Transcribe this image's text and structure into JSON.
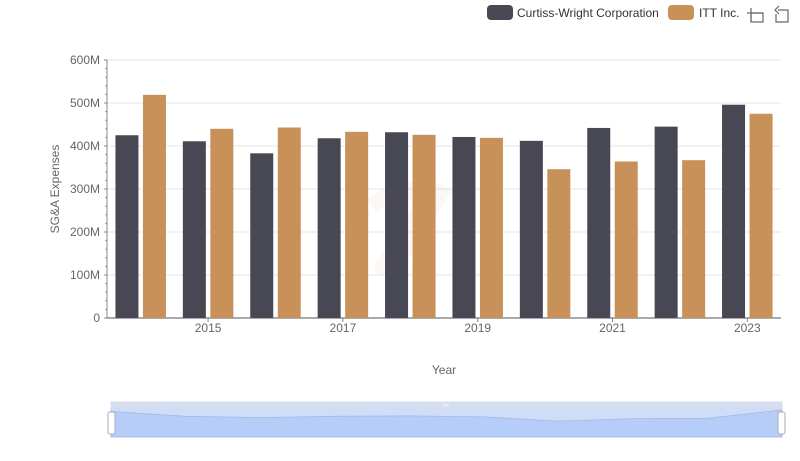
{
  "legend": {
    "items": [
      {
        "label": "Curtiss-Wright Corporation",
        "color": "#474853"
      },
      {
        "label": "ITT Inc.",
        "color": "#c8915a"
      }
    ]
  },
  "toolbox": {
    "zoom_icon": "zoom-select-icon",
    "restore_icon": "restore-icon"
  },
  "chart_data": {
    "type": "bar",
    "xlabel": "Year",
    "ylabel": "SG&A Expenses",
    "categories": [
      "2014",
      "2015",
      "2016",
      "2017",
      "2018",
      "2019",
      "2020",
      "2021",
      "2022",
      "2023"
    ],
    "x_tick_labels": [
      "2015",
      "2017",
      "2019",
      "2021",
      "2023"
    ],
    "y_tick_labels": [
      "0",
      "100M",
      "200M",
      "300M",
      "400M",
      "500M",
      "600M"
    ],
    "ylim": [
      0,
      600000000
    ],
    "grid": true,
    "legend_position": "top-right",
    "series": [
      {
        "name": "Curtiss-Wright Corporation",
        "color": "#474853",
        "values": [
          425000000,
          411000000,
          383000000,
          418000000,
          432000000,
          421000000,
          412000000,
          442000000,
          445000000,
          496000000
        ]
      },
      {
        "name": "ITT Inc.",
        "color": "#c8915a",
        "values": [
          519000000,
          440000000,
          443000000,
          433000000,
          426000000,
          419000000,
          346000000,
          364000000,
          367000000,
          475000000
        ]
      }
    ]
  }
}
